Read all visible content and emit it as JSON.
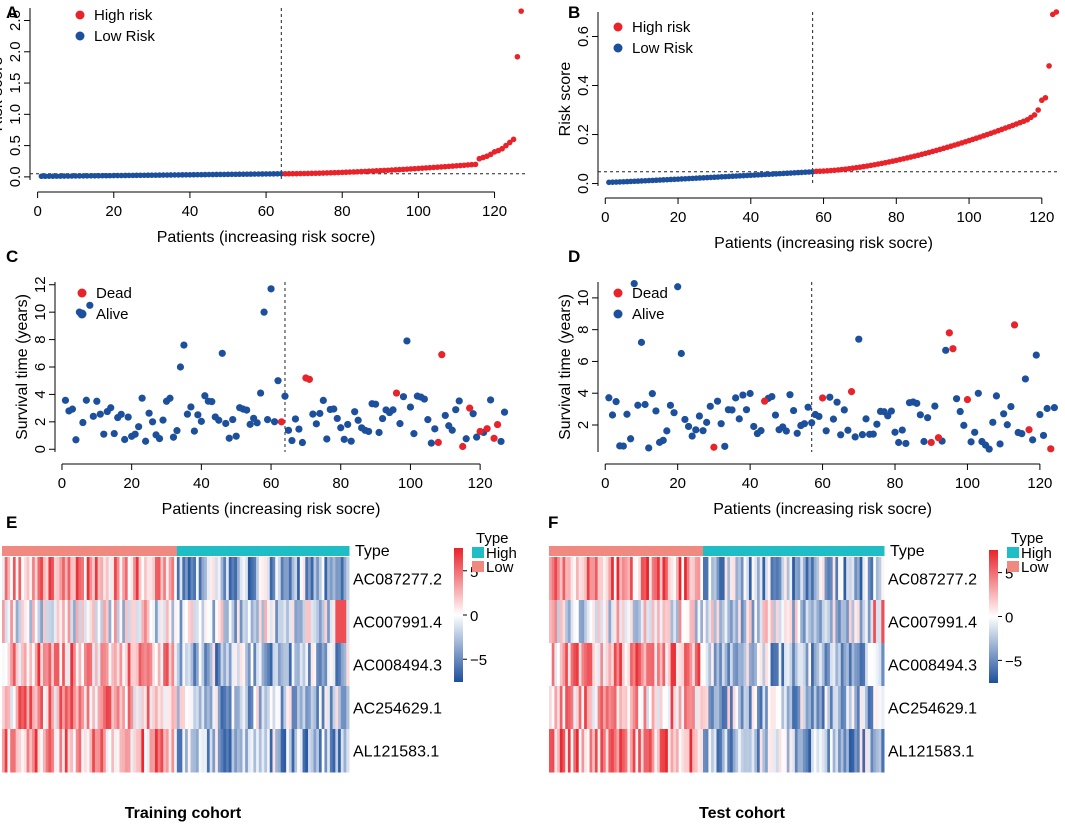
{
  "colors": {
    "high": "#e8232a",
    "low": "#1c4f9c",
    "type_high": "#1fbdc5",
    "type_low": "#f08a80"
  },
  "chart_data": [
    {
      "id": "A",
      "panel_letter": "A",
      "type": "scatter",
      "xlabel": "Patients (increasing risk socre)",
      "ylabel": "Risk score",
      "xlim": [
        -2,
        128
      ],
      "ylim": [
        -0.05,
        2.7
      ],
      "xticks": [
        "0",
        "20",
        "40",
        "60",
        "80",
        "100",
        "120"
      ],
      "yticks": [
        "0.0",
        "0.5",
        "1.0",
        "1.5",
        "2.0",
        "2.5"
      ],
      "n": 127,
      "cutoff_index": 64,
      "threshold": 0.05,
      "legend": [
        "High risk",
        "Low Risk"
      ],
      "low_range": [
        0.01,
        0.05
      ],
      "high_range": [
        0.05,
        0.2
      ],
      "top_values": [
        0.29,
        0.31,
        0.33,
        0.36,
        0.4,
        0.42,
        0.45,
        0.5,
        0.55,
        0.6,
        1.92,
        2.65
      ]
    },
    {
      "id": "B",
      "panel_letter": "B",
      "type": "scatter",
      "xlabel": "Patients (increasing risk socre)",
      "ylabel": "Risk score",
      "xlim": [
        -2,
        125
      ],
      "ylim": [
        -0.01,
        0.7
      ],
      "xticks": [
        "0",
        "20",
        "40",
        "60",
        "80",
        "100",
        "120"
      ],
      "yticks": [
        "0.0",
        "0.2",
        "0.4",
        "0.6"
      ],
      "n": 124,
      "cutoff_index": 57,
      "threshold": 0.048,
      "legend": [
        "High risk",
        "Low Risk"
      ],
      "low_range": [
        0.005,
        0.048
      ],
      "high_range": [
        0.05,
        0.26
      ],
      "top_values": [
        0.27,
        0.28,
        0.3,
        0.34,
        0.35,
        0.48,
        0.69,
        0.7
      ]
    },
    {
      "id": "C",
      "panel_letter": "C",
      "type": "scatter",
      "xlabel": "Patients (increasing risk socre)",
      "ylabel": "Survival time (years)",
      "xlim": [
        -2,
        128
      ],
      "ylim": [
        -0.2,
        12.2
      ],
      "xticks": [
        "0",
        "20",
        "40",
        "60",
        "80",
        "100",
        "120"
      ],
      "yticks": [
        "0",
        "2",
        "4",
        "6",
        "8",
        "10",
        "12"
      ],
      "n": 127,
      "cutoff_index": 64,
      "legend": [
        "Dead",
        "Alive"
      ],
      "alive_seed": 7,
      "dead_points": [
        [
          63,
          2.0
        ],
        [
          70,
          5.2
        ],
        [
          71,
          5.1
        ],
        [
          96,
          4.1
        ],
        [
          108,
          0.5
        ],
        [
          109,
          6.9
        ],
        [
          115,
          0.2
        ],
        [
          117,
          3.0
        ],
        [
          120,
          1.3
        ],
        [
          124,
          0.8
        ],
        [
          125,
          1.8
        ],
        [
          122,
          1.5
        ]
      ],
      "alive_special": [
        [
          5,
          10.0
        ],
        [
          8,
          10.5
        ],
        [
          34,
          6.0
        ],
        [
          35,
          7.6
        ],
        [
          46,
          7.0
        ],
        [
          58,
          10.0
        ],
        [
          60,
          11.7
        ],
        [
          62,
          5.0
        ],
        [
          99,
          7.9
        ],
        [
          30,
          3.5
        ],
        [
          57,
          4.1
        ]
      ]
    },
    {
      "id": "D",
      "panel_letter": "D",
      "type": "scatter",
      "xlabel": "Patients (increasing risk socre)",
      "ylabel": "Survival time (years)",
      "xlim": [
        -2,
        125
      ],
      "ylim": [
        0.3,
        11.0
      ],
      "xticks": [
        "0",
        "20",
        "40",
        "60",
        "80",
        "100",
        "120"
      ],
      "yticks": [
        "2",
        "4",
        "6",
        "8",
        "10"
      ],
      "n": 124,
      "cutoff_index": 57,
      "legend": [
        "Dead",
        "Alive"
      ],
      "alive_seed": 11,
      "dead_points": [
        [
          30,
          0.6
        ],
        [
          44,
          3.5
        ],
        [
          60,
          3.7
        ],
        [
          68,
          4.1
        ],
        [
          90,
          0.9
        ],
        [
          92,
          1.2
        ],
        [
          95,
          7.8
        ],
        [
          96,
          6.8
        ],
        [
          100,
          3.6
        ],
        [
          113,
          8.3
        ],
        [
          117,
          1.7
        ],
        [
          123,
          0.5
        ]
      ],
      "alive_special": [
        [
          8,
          10.9
        ],
        [
          10,
          7.2
        ],
        [
          20,
          10.7
        ],
        [
          21,
          6.5
        ],
        [
          70,
          7.4
        ],
        [
          94,
          6.7
        ],
        [
          116,
          4.9
        ],
        [
          119,
          6.4
        ]
      ]
    },
    {
      "id": "E",
      "panel_letter": "E",
      "type": "heatmap",
      "caption": "Training cohort",
      "genes": [
        "AC087277.2",
        "AC007991.4",
        "AC008494.3",
        "AC254629.1",
        "AL121583.1"
      ],
      "n_cols": 127,
      "low_cols": 64,
      "seed": 3,
      "type_label": "Type",
      "legend_title": "Type",
      "legend_items": [
        "High",
        "Low"
      ],
      "scale_ticks": [
        "5",
        "0",
        "−5"
      ]
    },
    {
      "id": "F",
      "panel_letter": "F",
      "type": "heatmap",
      "caption": "Test cohort",
      "genes": [
        "AC087277.2",
        "AC007991.4",
        "AC008494.3",
        "AC254629.1",
        "AL121583.1"
      ],
      "n_cols": 124,
      "low_cols": 57,
      "seed": 9,
      "type_label": "Type",
      "legend_title": "Type",
      "legend_items": [
        "High",
        "Low"
      ],
      "scale_ticks": [
        "5",
        "0",
        "−5"
      ]
    }
  ]
}
